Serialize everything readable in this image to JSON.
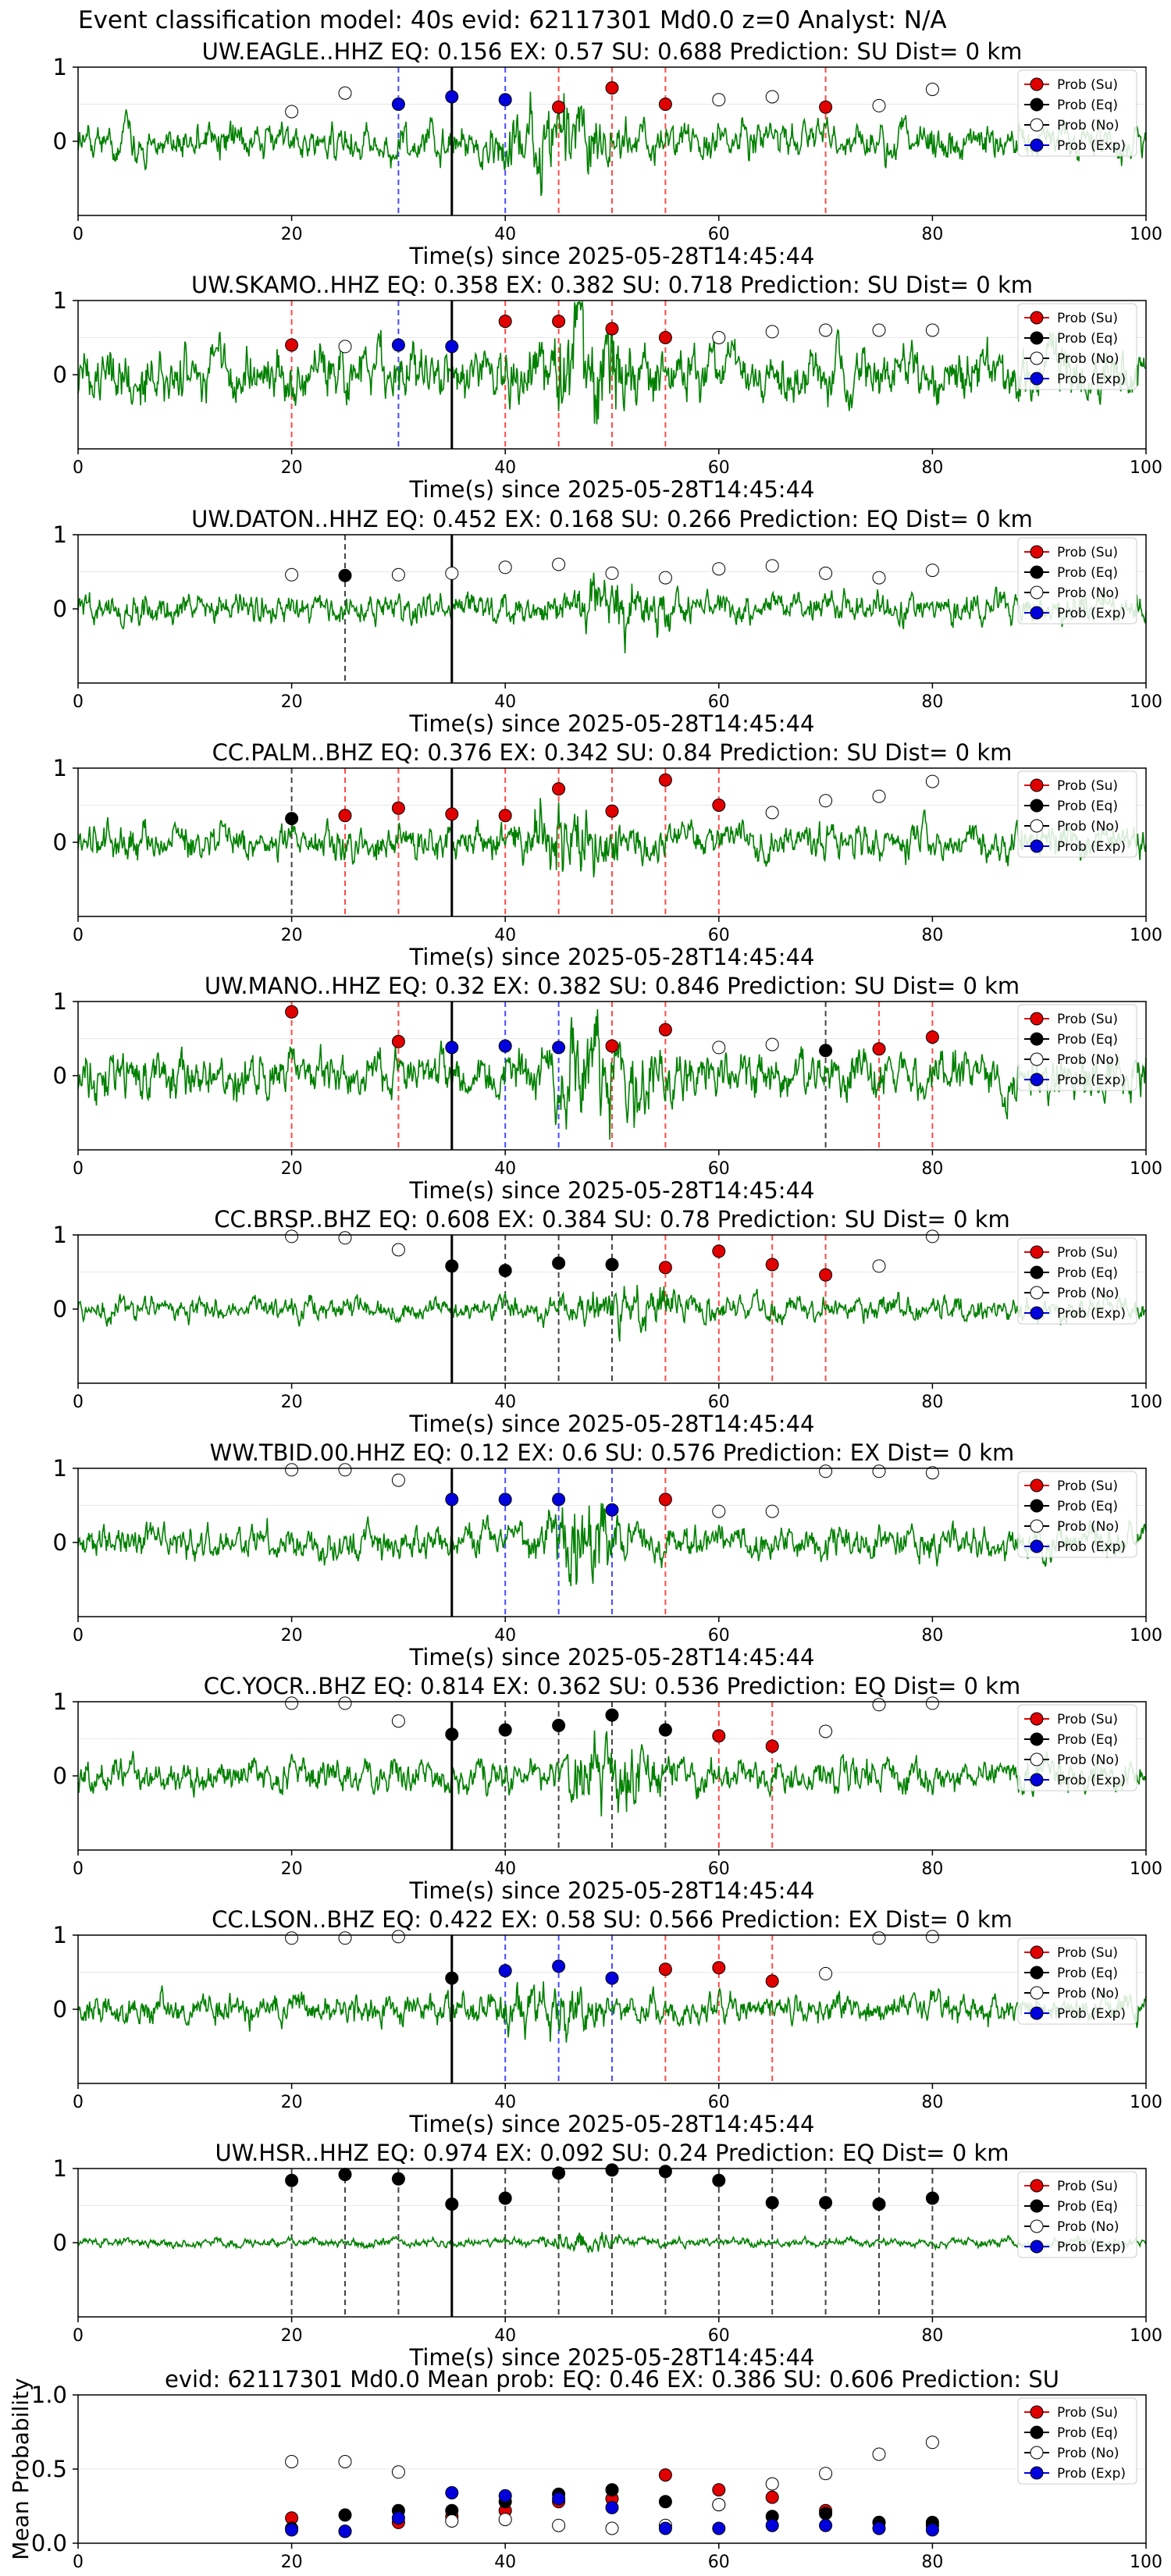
{
  "figure": {
    "suptitle": "Event classification model: 40s evid: 62117301 Md0.0 z=0 Analyst: N/A",
    "xlabel": "Time(s) since 2025-05-28T14:45:44",
    "legend": [
      "Prob (Su)",
      "Prob (Eq)",
      "Prob (No)",
      "Prob (Exp)"
    ],
    "colors": {
      "su": "#e00000",
      "eq": "#000000",
      "no": "#ffffff",
      "exp": "#0000dd",
      "waveform": "#008000"
    }
  },
  "chart_data": [
    {
      "type": "line",
      "title": "UW.EAGLE..HHZ   EQ: 0.156  EX: 0.57  SU: 0.688   Prediction: SU    Dist= 0 km",
      "xlabel": "Time(s) since 2025-05-28T14:45:44",
      "xlim": [
        0,
        100
      ],
      "ylim": [
        -1,
        1
      ],
      "xticks": [
        "0",
        "20",
        "40",
        "60",
        "80",
        "100"
      ],
      "yticks": [
        "1",
        "0"
      ],
      "origin_time": 35,
      "amplitude": 0.55,
      "series": [
        {
          "name": "Prob (Su)",
          "x": [
            45,
            50,
            55,
            70
          ],
          "y": [
            0.46,
            0.72,
            0.5,
            0.46
          ]
        },
        {
          "name": "Prob (Eq)",
          "x": [],
          "y": []
        },
        {
          "name": "Prob (No)",
          "x": [
            20,
            25,
            60,
            65,
            75,
            80
          ],
          "y": [
            0.4,
            0.65,
            0.56,
            0.6,
            0.48,
            0.7
          ]
        },
        {
          "name": "Prob (Exp)",
          "x": [
            30,
            35,
            40
          ],
          "y": [
            0.5,
            0.6,
            0.56
          ]
        }
      ]
    },
    {
      "type": "line",
      "title": "UW.SKAMO..HHZ   EQ: 0.358  EX: 0.382  SU: 0.718   Prediction: SU    Dist= 0 km",
      "xlabel": "Time(s) since 2025-05-28T14:45:44",
      "xlim": [
        0,
        100
      ],
      "ylim": [
        -1,
        1
      ],
      "xticks": [
        "0",
        "20",
        "40",
        "60",
        "80",
        "100"
      ],
      "yticks": [
        "1",
        "0"
      ],
      "origin_time": 35,
      "amplitude": 0.8,
      "series": [
        {
          "name": "Prob (Su)",
          "x": [
            20,
            40,
            45,
            50,
            55
          ],
          "y": [
            0.4,
            0.72,
            0.72,
            0.62,
            0.5
          ]
        },
        {
          "name": "Prob (Eq)",
          "x": [],
          "y": []
        },
        {
          "name": "Prob (No)",
          "x": [
            25,
            60,
            65,
            70,
            75,
            80
          ],
          "y": [
            0.38,
            0.5,
            0.58,
            0.6,
            0.6,
            0.6
          ]
        },
        {
          "name": "Prob (Exp)",
          "x": [
            30,
            35
          ],
          "y": [
            0.4,
            0.38
          ]
        }
      ]
    },
    {
      "type": "line",
      "title": "UW.DATON..HHZ   EQ: 0.452  EX: 0.168  SU: 0.266   Prediction: EQ    Dist= 0 km",
      "xlabel": "Time(s) since 2025-05-28T14:45:44",
      "xlim": [
        0,
        100
      ],
      "ylim": [
        -1,
        1
      ],
      "xticks": [
        "0",
        "20",
        "40",
        "60",
        "80",
        "100"
      ],
      "yticks": [
        "1",
        "0"
      ],
      "origin_time": 35,
      "amplitude": 0.45,
      "series": [
        {
          "name": "Prob (Su)",
          "x": [],
          "y": []
        },
        {
          "name": "Prob (Eq)",
          "x": [
            25
          ],
          "y": [
            0.45
          ]
        },
        {
          "name": "Prob (No)",
          "x": [
            20,
            30,
            35,
            40,
            45,
            50,
            55,
            60,
            65,
            70,
            75,
            80
          ],
          "y": [
            0.46,
            0.46,
            0.48,
            0.56,
            0.6,
            0.48,
            0.42,
            0.54,
            0.58,
            0.48,
            0.42,
            0.52
          ]
        },
        {
          "name": "Prob (Exp)",
          "x": [],
          "y": []
        }
      ]
    },
    {
      "type": "line",
      "title": "CC.PALM..BHZ   EQ: 0.376  EX: 0.342  SU: 0.84   Prediction: SU    Dist= 0 km",
      "xlabel": "Time(s) since 2025-05-28T14:45:44",
      "xlim": [
        0,
        100
      ],
      "ylim": [
        -1,
        1
      ],
      "xticks": [
        "0",
        "20",
        "40",
        "60",
        "80",
        "100"
      ],
      "yticks": [
        "1",
        "0"
      ],
      "origin_time": 35,
      "amplitude": 0.55,
      "series": [
        {
          "name": "Prob (Su)",
          "x": [
            25,
            30,
            35,
            40,
            45,
            50,
            55,
            60
          ],
          "y": [
            0.36,
            0.46,
            0.38,
            0.36,
            0.72,
            0.42,
            0.84,
            0.5
          ]
        },
        {
          "name": "Prob (Eq)",
          "x": [
            20
          ],
          "y": [
            0.32
          ]
        },
        {
          "name": "Prob (No)",
          "x": [
            65,
            70,
            75,
            80
          ],
          "y": [
            0.4,
            0.56,
            0.62,
            0.82
          ]
        },
        {
          "name": "Prob (Exp)",
          "x": [],
          "y": []
        }
      ]
    },
    {
      "type": "line",
      "title": "UW.MANO..HHZ   EQ: 0.32  EX: 0.382  SU: 0.846   Prediction: SU    Dist= 0 km",
      "xlabel": "Time(s) since 2025-05-28T14:45:44",
      "xlim": [
        0,
        100
      ],
      "ylim": [
        -1,
        1
      ],
      "xticks": [
        "0",
        "20",
        "40",
        "60",
        "80",
        "100"
      ],
      "yticks": [
        "1",
        "0"
      ],
      "origin_time": 35,
      "amplitude": 0.7,
      "series": [
        {
          "name": "Prob (Su)",
          "x": [
            20,
            30,
            50,
            55,
            75,
            80
          ],
          "y": [
            0.86,
            0.46,
            0.4,
            0.62,
            0.36,
            0.52
          ]
        },
        {
          "name": "Prob (Eq)",
          "x": [
            70
          ],
          "y": [
            0.34
          ]
        },
        {
          "name": "Prob (No)",
          "x": [
            60,
            65
          ],
          "y": [
            0.38,
            0.42
          ]
        },
        {
          "name": "Prob (Exp)",
          "x": [
            35,
            40,
            45
          ],
          "y": [
            0.38,
            0.4,
            0.38
          ]
        }
      ]
    },
    {
      "type": "line",
      "title": "CC.BRSP..BHZ   EQ: 0.608  EX: 0.384  SU: 0.78   Prediction: SU    Dist= 0 km",
      "xlabel": "Time(s) since 2025-05-28T14:45:44",
      "xlim": [
        0,
        100
      ],
      "ylim": [
        -1,
        1
      ],
      "xticks": [
        "0",
        "20",
        "40",
        "60",
        "80",
        "100"
      ],
      "yticks": [
        "1",
        "0"
      ],
      "origin_time": 35,
      "amplitude": 0.35,
      "series": [
        {
          "name": "Prob (Su)",
          "x": [
            55,
            60,
            65,
            70
          ],
          "y": [
            0.56,
            0.78,
            0.6,
            0.46
          ]
        },
        {
          "name": "Prob (Eq)",
          "x": [
            35,
            40,
            45,
            50
          ],
          "y": [
            0.58,
            0.52,
            0.62,
            0.6
          ]
        },
        {
          "name": "Prob (No)",
          "x": [
            20,
            25,
            30,
            75,
            80
          ],
          "y": [
            0.98,
            0.96,
            0.8,
            0.58,
            0.98
          ]
        },
        {
          "name": "Prob (Exp)",
          "x": [],
          "y": []
        }
      ]
    },
    {
      "type": "line",
      "title": "WW.TBID.00.HHZ   EQ: 0.12  EX: 0.6  SU: 0.576   Prediction: EX    Dist= 0 km",
      "xlabel": "Time(s) since 2025-05-28T14:45:44",
      "xlim": [
        0,
        100
      ],
      "ylim": [
        -1,
        1
      ],
      "xticks": [
        "0",
        "20",
        "40",
        "60",
        "80",
        "100"
      ],
      "yticks": [
        "1",
        "0"
      ],
      "origin_time": 35,
      "amplitude": 0.5,
      "series": [
        {
          "name": "Prob (Su)",
          "x": [
            55
          ],
          "y": [
            0.58
          ]
        },
        {
          "name": "Prob (Eq)",
          "x": [],
          "y": []
        },
        {
          "name": "Prob (No)",
          "x": [
            20,
            25,
            30,
            60,
            65,
            70,
            75,
            80
          ],
          "y": [
            0.98,
            0.98,
            0.84,
            0.42,
            0.42,
            0.96,
            0.96,
            0.94
          ]
        },
        {
          "name": "Prob (Exp)",
          "x": [
            35,
            40,
            45,
            50
          ],
          "y": [
            0.58,
            0.58,
            0.58,
            0.44
          ]
        }
      ]
    },
    {
      "type": "line",
      "title": "CC.YOCR..BHZ   EQ: 0.814  EX: 0.362  SU: 0.536   Prediction: EQ    Dist= 0 km",
      "xlabel": "Time(s) since 2025-05-28T14:45:44",
      "xlim": [
        0,
        100
      ],
      "ylim": [
        -1,
        1
      ],
      "xticks": [
        "0",
        "20",
        "40",
        "60",
        "80",
        "100"
      ],
      "yticks": [
        "1",
        "0"
      ],
      "origin_time": 35,
      "amplitude": 0.5,
      "series": [
        {
          "name": "Prob (Su)",
          "x": [
            60,
            65
          ],
          "y": [
            0.54,
            0.4
          ]
        },
        {
          "name": "Prob (Eq)",
          "x": [
            35,
            40,
            45,
            50,
            55
          ],
          "y": [
            0.56,
            0.62,
            0.68,
            0.82,
            0.62
          ]
        },
        {
          "name": "Prob (No)",
          "x": [
            20,
            25,
            30,
            70,
            75,
            80
          ],
          "y": [
            0.98,
            0.98,
            0.74,
            0.6,
            0.96,
            0.98
          ]
        },
        {
          "name": "Prob (Exp)",
          "x": [],
          "y": []
        }
      ]
    },
    {
      "type": "line",
      "title": "CC.LSON..BHZ   EQ: 0.422  EX: 0.58  SU: 0.566   Prediction: EX    Dist= 0 km",
      "xlabel": "Time(s) since 2025-05-28T14:45:44",
      "xlim": [
        0,
        100
      ],
      "ylim": [
        -1,
        1
      ],
      "xticks": [
        "0",
        "20",
        "40",
        "60",
        "80",
        "100"
      ],
      "yticks": [
        "1",
        "0"
      ],
      "origin_time": 35,
      "amplitude": 0.45,
      "series": [
        {
          "name": "Prob (Su)",
          "x": [
            55,
            60,
            65
          ],
          "y": [
            0.54,
            0.56,
            0.38
          ]
        },
        {
          "name": "Prob (Eq)",
          "x": [
            35
          ],
          "y": [
            0.42
          ]
        },
        {
          "name": "Prob (No)",
          "x": [
            20,
            25,
            30,
            70,
            75,
            80
          ],
          "y": [
            0.96,
            0.96,
            0.98,
            0.48,
            0.96,
            0.98
          ]
        },
        {
          "name": "Prob (Exp)",
          "x": [
            40,
            45,
            50
          ],
          "y": [
            0.52,
            0.58,
            0.42
          ]
        }
      ]
    },
    {
      "type": "line",
      "title": "UW.HSR..HHZ   EQ: 0.974  EX: 0.092  SU: 0.24   Prediction: EQ    Dist= 0 km",
      "xlabel": "Time(s) since 2025-05-28T14:45:44",
      "xlim": [
        0,
        100
      ],
      "ylim": [
        -1,
        1
      ],
      "xticks": [
        "0",
        "20",
        "40",
        "60",
        "80",
        "100"
      ],
      "yticks": [
        "1",
        "0"
      ],
      "origin_time": 35,
      "amplitude": 0.14,
      "series": [
        {
          "name": "Prob (Su)",
          "x": [],
          "y": []
        },
        {
          "name": "Prob (Eq)",
          "x": [
            20,
            25,
            30,
            35,
            40,
            45,
            50,
            55,
            60,
            65,
            70,
            75,
            80
          ],
          "y": [
            0.84,
            0.92,
            0.86,
            0.52,
            0.6,
            0.94,
            0.98,
            0.96,
            0.84,
            0.54,
            0.54,
            0.52,
            0.6
          ]
        },
        {
          "name": "Prob (No)",
          "x": [],
          "y": []
        },
        {
          "name": "Prob (Exp)",
          "x": [],
          "y": []
        }
      ]
    },
    {
      "type": "scatter",
      "title": "evid: 62117301  Md0.0   Mean prob:    EQ: 0.46  EX: 0.386  SU: 0.606   Prediction: SU",
      "ylabel": "Mean Probability",
      "xlim": [
        0,
        100
      ],
      "ylim": [
        0,
        1
      ],
      "xticks": [
        "0",
        "20",
        "40",
        "60",
        "80",
        "100"
      ],
      "yticks": [
        "1.0",
        "0.5",
        "0.0"
      ],
      "series": [
        {
          "name": "Prob (Su)",
          "x": [
            20,
            25,
            30,
            35,
            40,
            45,
            50,
            55,
            60,
            65,
            70,
            75,
            80
          ],
          "y": [
            0.17,
            0.08,
            0.14,
            0.18,
            0.22,
            0.28,
            0.3,
            0.46,
            0.36,
            0.31,
            0.22,
            0.14,
            0.12
          ]
        },
        {
          "name": "Prob (Eq)",
          "x": [
            20,
            25,
            30,
            35,
            40,
            45,
            50,
            55,
            60,
            65,
            70,
            75,
            80
          ],
          "y": [
            0.1,
            0.19,
            0.22,
            0.22,
            0.28,
            0.33,
            0.36,
            0.28,
            0.26,
            0.18,
            0.2,
            0.14,
            0.14
          ]
        },
        {
          "name": "Prob (No)",
          "x": [
            20,
            25,
            30,
            35,
            40,
            45,
            50,
            55,
            60,
            65,
            70,
            75,
            80
          ],
          "y": [
            0.55,
            0.55,
            0.48,
            0.15,
            0.16,
            0.12,
            0.1,
            0.12,
            0.26,
            0.4,
            0.47,
            0.6,
            0.68
          ]
        },
        {
          "name": "Prob (Exp)",
          "x": [
            20,
            25,
            30,
            35,
            40,
            45,
            50,
            55,
            60,
            65,
            70,
            75,
            80
          ],
          "y": [
            0.09,
            0.08,
            0.17,
            0.34,
            0.32,
            0.3,
            0.24,
            0.1,
            0.1,
            0.12,
            0.12,
            0.1,
            0.09
          ]
        }
      ]
    }
  ]
}
